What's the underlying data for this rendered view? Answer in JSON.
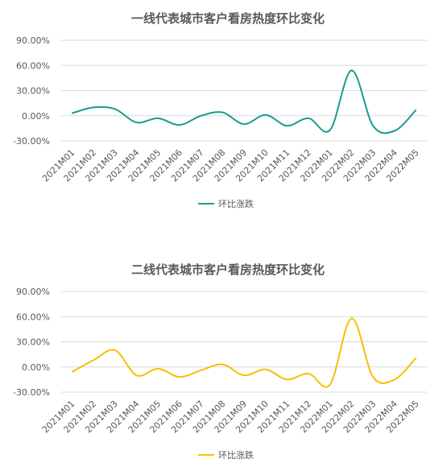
{
  "chart_data": [
    {
      "type": "line",
      "title": "一线代表城市客户看房热度环比变化",
      "categories": [
        "2021M01",
        "2021M02",
        "2021M03",
        "2021M04",
        "2021M05",
        "2021M06",
        "2021M07",
        "2021M08",
        "2021M09",
        "2021M10",
        "2021M11",
        "2021M12",
        "2022M01",
        "2022M02",
        "2022M03",
        "2022M04",
        "2022M05"
      ],
      "series": [
        {
          "name": "环比涨跌",
          "color": "#1a9c8a",
          "values": [
            3,
            10,
            8,
            -8,
            -3,
            -11,
            0,
            4,
            -10,
            1,
            -12,
            -3,
            -17,
            54,
            -12,
            -18,
            7
          ]
        }
      ],
      "yticks": [
        "90.00%",
        "60.00%",
        "30.00%",
        "0.00%",
        "-30.00%"
      ],
      "ylim": [
        -30,
        90
      ],
      "legend": "bottom"
    },
    {
      "type": "line",
      "title": "二线代表城市客户看房热度环比变化",
      "categories": [
        "2021M01",
        "2021M02",
        "2021M03",
        "2021M04",
        "2021M05",
        "2021M06",
        "2021M07",
        "2021M08",
        "2021M09",
        "2021M10",
        "2021M11",
        "2021M12",
        "2022M01",
        "2022M02",
        "2022M03",
        "2022M04",
        "2022M05"
      ],
      "series": [
        {
          "name": "环比涨跌",
          "color": "#f5c000",
          "values": [
            -6,
            8,
            20,
            -10,
            -2,
            -12,
            -4,
            3,
            -10,
            -3,
            -15,
            -8,
            -21,
            58,
            -12,
            -15,
            11
          ]
        }
      ],
      "yticks": [
        "90.00%",
        "60.00%",
        "30.00%",
        "0.00%",
        "-30.00%"
      ],
      "ylim": [
        -30,
        90
      ],
      "legend": "bottom"
    }
  ]
}
